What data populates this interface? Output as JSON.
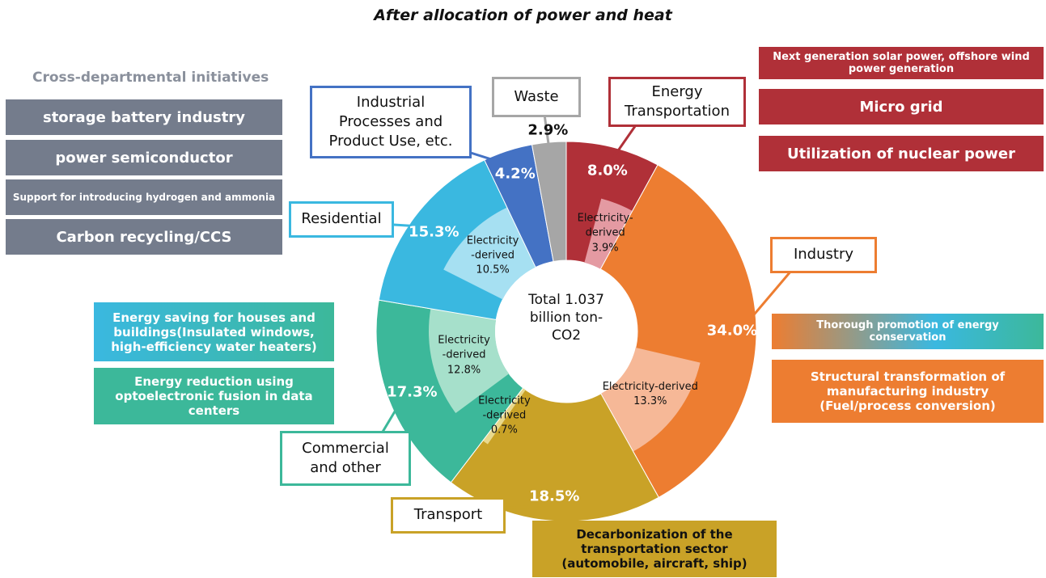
{
  "chart_data": {
    "type": "donut",
    "title": "After allocation of power and heat",
    "center_label": "Total 1.037 billion ton-CO2",
    "categories": [
      "Energy Transportation",
      "Industry",
      "Transport",
      "Commercial and other",
      "Residential",
      "Industrial Processes and Product Use, etc.",
      "Waste"
    ],
    "values": [
      8.0,
      34.0,
      18.5,
      17.3,
      15.3,
      4.2,
      2.9
    ],
    "value_labels": [
      "8.0%",
      "34.0%",
      "18.5%",
      "17.3%",
      "15.3%",
      "4.2%",
      "2.9%"
    ],
    "colors": [
      "#b03038",
      "#ed7d31",
      "#c9a227",
      "#3cb89a",
      "#3ab8e0",
      "#4472c4",
      "#a6a6a6"
    ],
    "inner": {
      "labels": [
        "Electricity-derived",
        "Electricity-derived",
        "Electricity -derived",
        "Electricity -derived",
        "Electricity -derived",
        null,
        null
      ],
      "values": [
        3.9,
        13.3,
        0.7,
        12.8,
        10.5,
        null,
        null
      ],
      "value_labels": [
        "3.9%",
        "13.3%",
        "0.7%",
        "12.8%",
        "10.5%",
        null,
        null
      ],
      "colors": [
        "#e49aa2",
        "#f6b897",
        "#e9d98e",
        "#a6e0cb",
        "#a6e0f2",
        null,
        null
      ]
    }
  },
  "initiatives": {
    "heading": "Cross-departmental initiatives",
    "items": [
      "storage battery industry",
      "power semiconductor",
      "Support for introducing hydrogen and ammonia",
      "Carbon recycling/CCS"
    ]
  },
  "energy_measures": [
    "Next generation solar power, offshore wind power generation",
    "Micro grid",
    "Utilization of nuclear power"
  ],
  "industry_measures": [
    "Thorough promotion of energy conservation",
    "Structural transformation of manufacturing industry (Fuel/process conversion)"
  ],
  "building_measures": [
    "Energy saving for houses and buildings(Insulated windows, high-efficiency water heaters)",
    "Energy reduction using optoelectronic fusion in data centers"
  ],
  "transport_measures": [
    "Decarbonization of the transportation sector (automobile, aircraft, ship)"
  ]
}
